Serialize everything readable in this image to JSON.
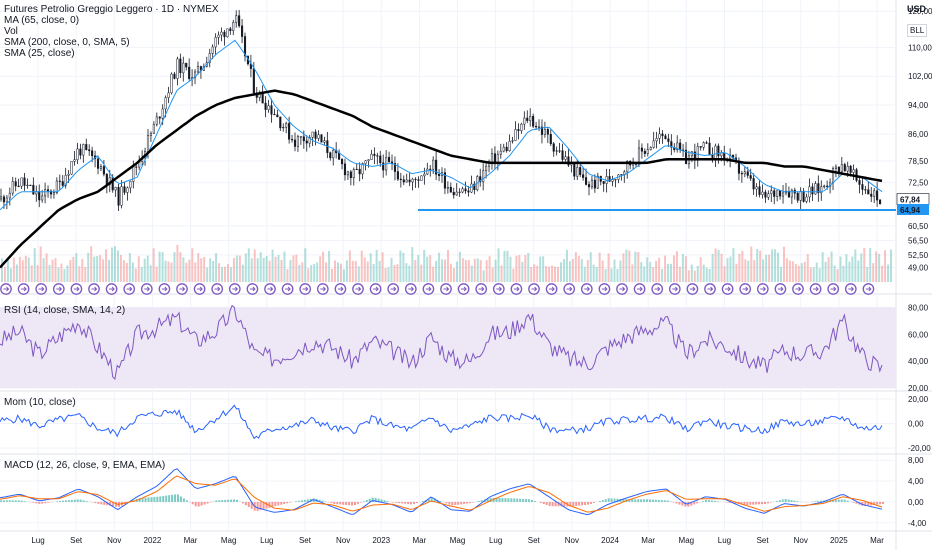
{
  "header": {
    "title": "Futures Petrolio Greggio Leggero · 1D · NYMEX",
    "indicators": [
      "MA (65, close, 0)",
      "Vol",
      "SMA (200, close, 0, SMA, 5)",
      "SMA (25, close)"
    ]
  },
  "currency": [
    "USD",
    "BLL"
  ],
  "colors": {
    "main_bg": "#ffffff",
    "rsi_bg": "#ede7f6",
    "rsi_line": "#7e57c2",
    "mom_line": "#2962ff",
    "macd_line": "#2962ff",
    "signal_line": "#ff6d00",
    "support_line": "#2196f3",
    "sma200": "#000000",
    "sma25": "#2196f3",
    "candle": "#131722",
    "vol_up": "#26a69a",
    "vol_down": "#ef5350"
  },
  "panes": {
    "rsi_label": "RSI (14, close, SMA, 14, 2)",
    "mom_label": "Mom (10, close)",
    "macd_label": "MACD (12, 26, close, 9, EMA, EMA)"
  },
  "chart_data": [
    {
      "type": "line",
      "title": "Futures Petrolio Greggio Leggero · 1D · NYMEX",
      "ylim": [
        45,
        122
      ],
      "y_ticks": [
        "120,00",
        "110,00",
        "102,00",
        "94,00",
        "86,00",
        "78,50",
        "72,50",
        "67,84",
        "64,94",
        "60,50",
        "56,50",
        "52,50",
        "49,00"
      ],
      "y_tick_values": [
        120,
        110,
        102,
        94,
        86,
        78.5,
        72.5,
        67.84,
        64.94,
        60.5,
        56.5,
        52.5,
        49
      ],
      "last_price": "67,84",
      "support_level": "64,94",
      "support_value": 64.94,
      "x_ticks": [
        "Lug",
        "Set",
        "Nov",
        "2022",
        "Mar",
        "Mag",
        "Lug",
        "Set",
        "Nov",
        "2023",
        "Mar",
        "Mag",
        "Lug",
        "Set",
        "Nov",
        "2024",
        "Mar",
        "Mag",
        "Lug",
        "Set",
        "Nov",
        "2025",
        "Mar"
      ],
      "price_series": {
        "name": "close",
        "x": [
          "2021-06",
          "2021-07",
          "2021-08",
          "2021-09",
          "2021-10",
          "2021-11",
          "2021-12",
          "2022-01",
          "2022-02",
          "2022-03",
          "2022-04",
          "2022-05",
          "2022-06",
          "2022-07",
          "2022-08",
          "2022-09",
          "2022-10",
          "2022-11",
          "2022-12",
          "2023-01",
          "2023-02",
          "2023-03",
          "2023-04",
          "2023-05",
          "2023-06",
          "2023-07",
          "2023-08",
          "2023-09",
          "2023-10",
          "2023-11",
          "2023-12",
          "2024-01",
          "2024-02",
          "2024-03",
          "2024-04",
          "2024-05",
          "2024-06",
          "2024-07",
          "2024-08",
          "2024-09",
          "2024-10",
          "2024-11",
          "2024-12",
          "2025-01",
          "2025-02",
          "2025-03"
        ],
        "values": [
          68,
          73,
          68,
          72,
          82,
          78,
          68,
          78,
          90,
          105,
          102,
          112,
          118,
          98,
          92,
          84,
          86,
          80,
          74,
          79,
          77,
          72,
          78,
          71,
          70,
          78,
          83,
          91,
          85,
          78,
          72,
          73,
          77,
          82,
          86,
          79,
          82,
          80,
          75,
          68,
          71,
          69,
          71,
          78,
          72,
          67.84
        ]
      },
      "sma200": {
        "name": "SMA (200, close, 0, SMA, 5)",
        "values": [
          49,
          55,
          60,
          65,
          68,
          70,
          74,
          78,
          83,
          87,
          91,
          94,
          96,
          97,
          98,
          97,
          95,
          93,
          91,
          88,
          86,
          84,
          82,
          80,
          79,
          78,
          78,
          78,
          78,
          78,
          78,
          78,
          78,
          78,
          79,
          79,
          79,
          79,
          78,
          78,
          77,
          77,
          76,
          75,
          74,
          73
        ]
      },
      "sma25": {
        "name": "SMA (25, close)",
        "values": [
          65,
          70,
          70,
          70,
          76,
          80,
          72,
          74,
          86,
          98,
          102,
          108,
          112,
          104,
          94,
          88,
          84,
          82,
          78,
          77,
          78,
          75,
          76,
          74,
          71,
          75,
          80,
          87,
          88,
          82,
          75,
          73,
          75,
          79,
          83,
          81,
          80,
          81,
          77,
          72,
          70,
          70,
          70,
          75,
          74,
          70
        ]
      },
      "volume": {
        "name": "Vol",
        "values": [
          0.6,
          0.5,
          0.7,
          0.5,
          0.6,
          0.8,
          0.7,
          0.6,
          0.7,
          0.9,
          0.7,
          0.6,
          0.7,
          0.6,
          0.5,
          0.6,
          0.6,
          0.5,
          0.6,
          0.6,
          0.5,
          0.7,
          0.6,
          0.6,
          0.5,
          0.6,
          0.6,
          0.7,
          0.6,
          0.6,
          0.6,
          0.6,
          0.5,
          0.6,
          0.6,
          0.5,
          0.6,
          0.6,
          0.7,
          0.7,
          0.6,
          0.6,
          0.5,
          0.6,
          0.6,
          0.7
        ]
      }
    },
    {
      "type": "line",
      "title": "RSI (14, close, SMA, 14, 2)",
      "ylim": [
        20,
        80
      ],
      "y_ticks": [
        "80,00",
        "60,00",
        "40,00",
        "20,00"
      ],
      "series": [
        {
          "name": "RSI",
          "values": [
            55,
            62,
            45,
            58,
            70,
            50,
            30,
            60,
            65,
            72,
            55,
            62,
            78,
            45,
            42,
            48,
            55,
            50,
            40,
            55,
            48,
            38,
            58,
            42,
            40,
            60,
            62,
            74,
            52,
            42,
            38,
            50,
            58,
            64,
            68,
            45,
            56,
            52,
            42,
            36,
            48,
            45,
            48,
            70,
            44,
            34
          ]
        }
      ]
    },
    {
      "type": "line",
      "title": "Mom (10, close)",
      "ylim": [
        -20,
        20
      ],
      "y_ticks": [
        "20,00",
        "0,00",
        "-20,00"
      ],
      "series": [
        {
          "name": "Mom",
          "values": [
            2,
            4,
            -2,
            3,
            6,
            -4,
            -8,
            5,
            8,
            10,
            -6,
            4,
            14,
            -12,
            -4,
            -2,
            3,
            -4,
            -6,
            4,
            -2,
            -5,
            5,
            -6,
            -2,
            5,
            4,
            7,
            -4,
            -6,
            -4,
            2,
            3,
            4,
            5,
            -5,
            3,
            -2,
            -4,
            -6,
            2,
            -1,
            2,
            5,
            -4,
            -3
          ]
        }
      ]
    },
    {
      "type": "line",
      "title": "MACD (12, 26, close, 9, EMA, EMA)",
      "ylim": [
        -4,
        8
      ],
      "y_ticks": [
        "8,00",
        "4,00",
        "0,00",
        "-4,00"
      ],
      "series": [
        {
          "name": "MACD",
          "values": [
            0.8,
            1.5,
            0.2,
            0.8,
            2.5,
            1.0,
            -1.5,
            1.0,
            3.0,
            6.5,
            2.5,
            3.5,
            5.0,
            -1.0,
            -2.0,
            -1.5,
            0.5,
            -1.0,
            -2.5,
            0.3,
            -0.5,
            -2.0,
            1.0,
            -1.5,
            -1.8,
            1.0,
            2.5,
            3.5,
            1.0,
            -1.5,
            -2.5,
            -0.5,
            0.8,
            2.0,
            2.5,
            -0.5,
            1.0,
            0.5,
            -1.2,
            -2.2,
            -0.3,
            -0.8,
            0.0,
            1.5,
            -0.5,
            -1.4
          ]
        },
        {
          "name": "Signal",
          "values": [
            0.5,
            1.2,
            0.6,
            0.6,
            2.0,
            1.4,
            -0.5,
            0.3,
            2.0,
            5.0,
            3.5,
            3.2,
            4.5,
            0.8,
            -1.2,
            -1.6,
            -0.2,
            -0.6,
            -1.8,
            -0.6,
            -0.4,
            -1.5,
            0.2,
            -0.8,
            -1.6,
            0.2,
            1.8,
            3.0,
            1.8,
            -0.6,
            -2.0,
            -1.2,
            0.3,
            1.5,
            2.2,
            0.5,
            0.6,
            0.6,
            -0.6,
            -1.8,
            -0.9,
            -0.7,
            -0.3,
            1.0,
            0.3,
            -1.0
          ]
        }
      ]
    }
  ]
}
